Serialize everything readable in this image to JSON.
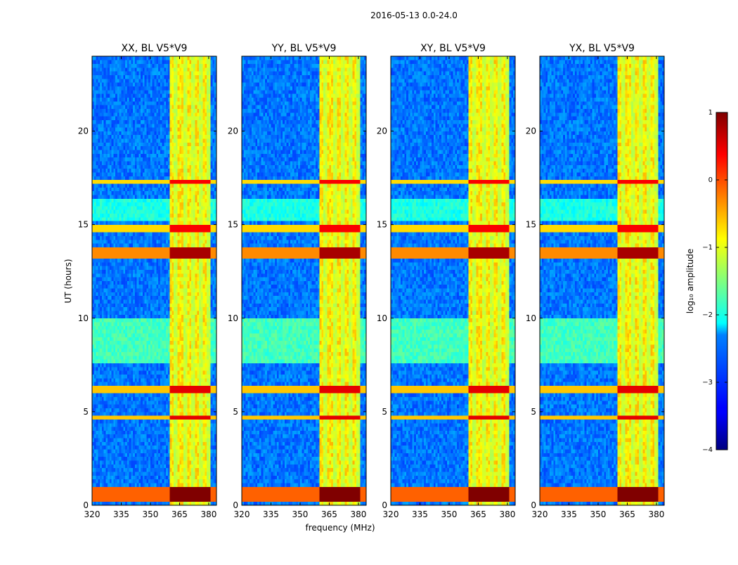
{
  "chart_data": {
    "type": "heatmap",
    "suptitle": "2016-05-13 0.0-24.0",
    "xlabel": "frequency (MHz)",
    "ylabel": "UT (hours)",
    "xlim": [
      320,
      384
    ],
    "ylim": [
      0,
      24
    ],
    "xticks": [
      320,
      335,
      350,
      365,
      380
    ],
    "yticks": [
      0,
      5,
      10,
      15,
      20
    ],
    "panels": [
      {
        "title": "XX, BL V5*V9"
      },
      {
        "title": "YY, BL V5*V9"
      },
      {
        "title": "XY, BL V5*V9"
      },
      {
        "title": "YX, BL V5*V9"
      }
    ],
    "colorbar": {
      "label": "log₁₀ amplitude",
      "range": [
        -4,
        1
      ],
      "ticks": [
        -4,
        -3,
        -2,
        -1,
        0,
        1
      ],
      "tick_labels": [
        "−4",
        "−3",
        "−2",
        "−1",
        "0",
        "1"
      ],
      "colormap": "jet"
    },
    "bands": {
      "quiet_low_freq_level": -2.8,
      "signal_band_mhz": [
        360,
        381
      ],
      "signal_band_level": -0.8,
      "signal_stripes_mhz": [
        363,
        368,
        372,
        376,
        380
      ],
      "high_amplitude_ut_rows": [
        {
          "ut": [
            0.2,
            1.0
          ],
          "level": 0.8
        },
        {
          "ut": [
            13.2,
            13.8
          ],
          "level": 0.6
        },
        {
          "ut": [
            4.6,
            4.8
          ],
          "level": 0.3
        },
        {
          "ut": [
            6.1,
            6.3
          ],
          "level": 0.3
        },
        {
          "ut": [
            14.7,
            14.9
          ],
          "level": 0.2
        },
        {
          "ut": [
            17.3,
            17.5
          ],
          "level": 0.2
        }
      ],
      "elevated_ut_rows": [
        {
          "ut": [
            7.6,
            10.0
          ],
          "level": -1.8
        },
        {
          "ut": [
            15.2,
            16.3
          ],
          "level": -2.0
        }
      ]
    }
  }
}
